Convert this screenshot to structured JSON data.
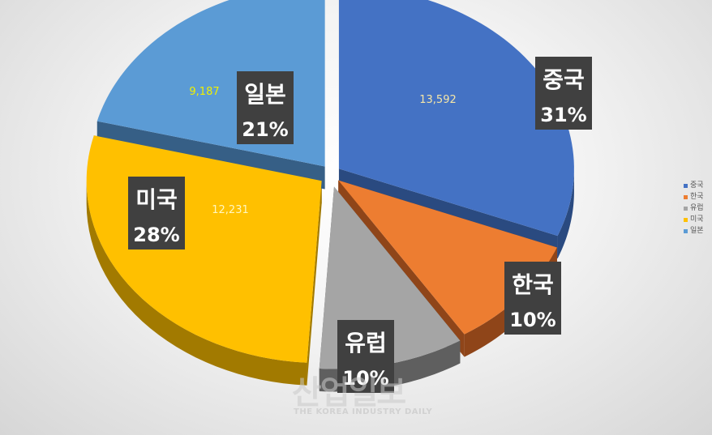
{
  "chart_data": {
    "type": "pie",
    "style": "3d-exploded",
    "categories": [
      "중국",
      "한국",
      "유럽",
      "미국",
      "일본"
    ],
    "values": [
      13592,
      null,
      null,
      12231,
      9187
    ],
    "value_labels": [
      "13,592",
      "",
      "",
      "12,231",
      "9,187"
    ],
    "percent_labels": [
      "31%",
      "10%",
      "10%",
      "28%",
      "21%"
    ],
    "percentages": [
      31,
      10,
      10,
      28,
      21
    ],
    "colors": [
      "#4472C4",
      "#ED7D31",
      "#A5A5A5",
      "#FFC000",
      "#5B9BD5"
    ],
    "side_colors": [
      "#2A4A80",
      "#8F4519",
      "#5F5F5F",
      "#A27A00",
      "#365F86"
    ],
    "value_label_colors": [
      "#F5E6A8",
      "",
      "",
      "#FFF7C0",
      "#F0F000"
    ],
    "legend_position": "right"
  },
  "watermark": {
    "main": "산업일보",
    "sub": "THE KOREA INDUSTRY DAILY"
  }
}
